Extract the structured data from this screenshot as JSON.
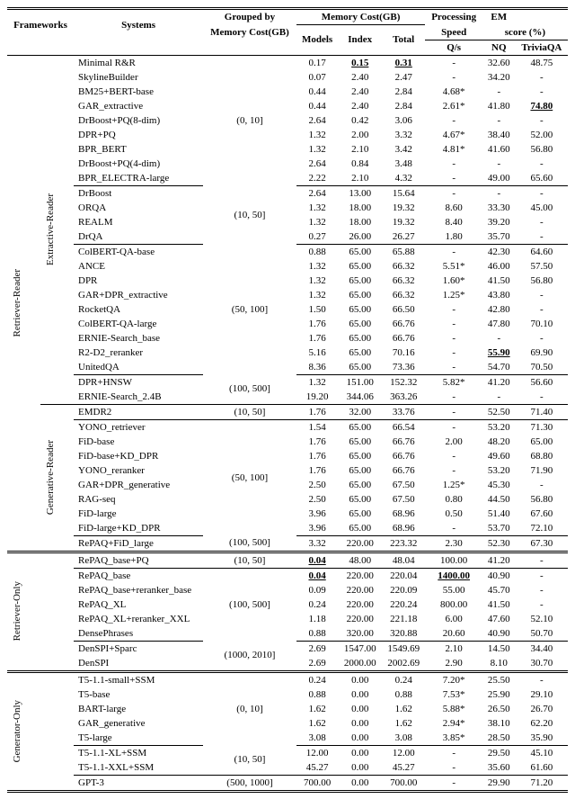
{
  "head": {
    "frameworks": "Frameworks",
    "systems": "Systems",
    "grouped_lbl1": "Grouped by",
    "grouped_lbl2": "Memory Cost(GB)",
    "mem_hdr": "Memory Cost(GB)",
    "mem_models": "Models",
    "mem_index": "Index",
    "mem_total": "Total",
    "speed_hdr1": "Processing",
    "speed_hdr2": "Speed",
    "speed_sub": "Q/s",
    "em_hdr1": "EM",
    "em_hdr2": "score (%)",
    "em_nq": "NQ",
    "em_tq": "TriviaQA"
  },
  "framework_labels": {
    "rr": "Retriever-Reader",
    "ro": "Retriever-Only",
    "go": "Generator-Only",
    "extractive": "Extractive-Reader",
    "generative": "Generative-Reader"
  },
  "groups": {
    "g0_10": "(0, 10]",
    "g10_50": "(10, 50]",
    "g50_100": "(50, 100]",
    "g100_500": "(100, 500]",
    "g500_1000": "(500, 1000]",
    "g1000_2010": "(1000, 2010]"
  },
  "rows": {
    "r1": {
      "sys": "Minimal R&R",
      "m": "0.17",
      "i": "0.15",
      "t": "0.31",
      "q": "-",
      "nq": "32.60",
      "tq": "48.75"
    },
    "r2": {
      "sys": "SkylineBuilder",
      "m": "0.07",
      "i": "2.40",
      "t": "2.47",
      "q": "-",
      "nq": "34.20",
      "tq": "-"
    },
    "r3": {
      "sys": "BM25+BERT-base",
      "m": "0.44",
      "i": "2.40",
      "t": "2.84",
      "q": "4.68*",
      "nq": "-",
      "tq": "-"
    },
    "r4": {
      "sys": "GAR_extractive",
      "m": "0.44",
      "i": "2.40",
      "t": "2.84",
      "q": "2.61*",
      "nq": "41.80",
      "tq": "74.80"
    },
    "r5": {
      "sys": "DrBoost+PQ(8-dim)",
      "m": "2.64",
      "i": "0.42",
      "t": "3.06",
      "q": "-",
      "nq": "-",
      "tq": "-"
    },
    "r6": {
      "sys": "DPR+PQ",
      "m": "1.32",
      "i": "2.00",
      "t": "3.32",
      "q": "4.67*",
      "nq": "38.40",
      "tq": "52.00"
    },
    "r7": {
      "sys": "BPR_BERT",
      "m": "1.32",
      "i": "2.10",
      "t": "3.42",
      "q": "4.81*",
      "nq": "41.60",
      "tq": "56.80"
    },
    "r8": {
      "sys": "DrBoost+PQ(4-dim)",
      "m": "2.64",
      "i": "0.84",
      "t": "3.48",
      "q": "-",
      "nq": "-",
      "tq": "-"
    },
    "r9": {
      "sys": "BPR_ELECTRA-large",
      "m": "2.22",
      "i": "2.10",
      "t": "4.32",
      "q": "-",
      "nq": "49.00",
      "tq": "65.60"
    },
    "r10": {
      "sys": "DrBoost",
      "m": "2.64",
      "i": "13.00",
      "t": "15.64",
      "q": "-",
      "nq": "-",
      "tq": "-"
    },
    "r11": {
      "sys": "ORQA",
      "m": "1.32",
      "i": "18.00",
      "t": "19.32",
      "q": "8.60",
      "nq": "33.30",
      "tq": "45.00"
    },
    "r12": {
      "sys": "REALM",
      "m": "1.32",
      "i": "18.00",
      "t": "19.32",
      "q": "8.40",
      "nq": "39.20",
      "tq": "-"
    },
    "r13": {
      "sys": "DrQA",
      "m": "0.27",
      "i": "26.00",
      "t": "26.27",
      "q": "1.80",
      "nq": "35.70",
      "tq": "-"
    },
    "r14": {
      "sys": "ColBERT-QA-base",
      "m": "0.88",
      "i": "65.00",
      "t": "65.88",
      "q": "-",
      "nq": "42.30",
      "tq": "64.60"
    },
    "r15": {
      "sys": "ANCE",
      "m": "1.32",
      "i": "65.00",
      "t": "66.32",
      "q": "5.51*",
      "nq": "46.00",
      "tq": "57.50"
    },
    "r16": {
      "sys": "DPR",
      "m": "1.32",
      "i": "65.00",
      "t": "66.32",
      "q": "1.60*",
      "nq": "41.50",
      "tq": "56.80"
    },
    "r17": {
      "sys": "GAR+DPR_extractive",
      "m": "1.32",
      "i": "65.00",
      "t": "66.32",
      "q": "1.25*",
      "nq": "43.80",
      "tq": "-"
    },
    "r18": {
      "sys": "RocketQA",
      "m": "1.50",
      "i": "65.00",
      "t": "66.50",
      "q": "-",
      "nq": "42.80",
      "tq": "-"
    },
    "r19": {
      "sys": "ColBERT-QA-large",
      "m": "1.76",
      "i": "65.00",
      "t": "66.76",
      "q": "-",
      "nq": "47.80",
      "tq": "70.10"
    },
    "r20": {
      "sys": "ERNIE-Search_base",
      "m": "1.76",
      "i": "65.00",
      "t": "66.76",
      "q": "-",
      "nq": "-",
      "tq": "-"
    },
    "r21": {
      "sys": "R2-D2_reranker",
      "m": "5.16",
      "i": "65.00",
      "t": "70.16",
      "q": "-",
      "nq": "55.90",
      "tq": "69.90"
    },
    "r22": {
      "sys": "UnitedQA",
      "m": "8.36",
      "i": "65.00",
      "t": "73.36",
      "q": "-",
      "nq": "54.70",
      "tq": "70.50"
    },
    "r23": {
      "sys": "DPR+HNSW",
      "m": "1.32",
      "i": "151.00",
      "t": "152.32",
      "q": "5.82*",
      "nq": "41.20",
      "tq": "56.60"
    },
    "r24": {
      "sys": "ERNIE-Search_2.4B",
      "m": "19.20",
      "i": "344.06",
      "t": "363.26",
      "q": "-",
      "nq": "-",
      "tq": "-"
    },
    "r25": {
      "sys": "EMDR2",
      "m": "1.76",
      "i": "32.00",
      "t": "33.76",
      "q": "-",
      "nq": "52.50",
      "tq": "71.40"
    },
    "r26": {
      "sys": "YONO_retriever",
      "m": "1.54",
      "i": "65.00",
      "t": "66.54",
      "q": "-",
      "nq": "53.20",
      "tq": "71.30"
    },
    "r27": {
      "sys": "FiD-base",
      "m": "1.76",
      "i": "65.00",
      "t": "66.76",
      "q": "2.00",
      "nq": "48.20",
      "tq": "65.00"
    },
    "r28": {
      "sys": "FiD-base+KD_DPR",
      "m": "1.76",
      "i": "65.00",
      "t": "66.76",
      "q": "-",
      "nq": "49.60",
      "tq": "68.80"
    },
    "r29": {
      "sys": "YONO_reranker",
      "m": "1.76",
      "i": "65.00",
      "t": "66.76",
      "q": "-",
      "nq": "53.20",
      "tq": "71.90"
    },
    "r30": {
      "sys": "GAR+DPR_generative",
      "m": "2.50",
      "i": "65.00",
      "t": "67.50",
      "q": "1.25*",
      "nq": "45.30",
      "tq": "-"
    },
    "r31": {
      "sys": "RAG-seq",
      "m": "2.50",
      "i": "65.00",
      "t": "67.50",
      "q": "0.80",
      "nq": "44.50",
      "tq": "56.80"
    },
    "r32": {
      "sys": "FiD-large",
      "m": "3.96",
      "i": "65.00",
      "t": "68.96",
      "q": "0.50",
      "nq": "51.40",
      "tq": "67.60"
    },
    "r33": {
      "sys": "FiD-large+KD_DPR",
      "m": "3.96",
      "i": "65.00",
      "t": "68.96",
      "q": "-",
      "nq": "53.70",
      "tq": "72.10"
    },
    "r34": {
      "sys": "RePAQ+FiD_large",
      "m": "3.32",
      "i": "220.00",
      "t": "223.32",
      "q": "2.30",
      "nq": "52.30",
      "tq": "67.30"
    },
    "r35": {
      "sys": "RePAQ_base+PQ",
      "m": "0.04",
      "i": "48.00",
      "t": "48.04",
      "q": "100.00",
      "nq": "41.20",
      "tq": "-"
    },
    "r36": {
      "sys": "RePAQ_base",
      "m": "0.04",
      "i": "220.00",
      "t": "220.04",
      "q": "1400.00",
      "nq": "40.90",
      "tq": "-"
    },
    "r37": {
      "sys": "RePAQ_base+reranker_base",
      "m": "0.09",
      "i": "220.00",
      "t": "220.09",
      "q": "55.00",
      "nq": "45.70",
      "tq": "-"
    },
    "r38": {
      "sys": "RePAQ_XL",
      "m": "0.24",
      "i": "220.00",
      "t": "220.24",
      "q": "800.00",
      "nq": "41.50",
      "tq": "-"
    },
    "r39": {
      "sys": "RePAQ_XL+reranker_XXL",
      "m": "1.18",
      "i": "220.00",
      "t": "221.18",
      "q": "6.00",
      "nq": "47.60",
      "tq": "52.10"
    },
    "r40": {
      "sys": "DensePhrases",
      "m": "0.88",
      "i": "320.00",
      "t": "320.88",
      "q": "20.60",
      "nq": "40.90",
      "tq": "50.70"
    },
    "r41": {
      "sys": "DenSPI+Sparc",
      "m": "2.69",
      "i": "1547.00",
      "t": "1549.69",
      "q": "2.10",
      "nq": "14.50",
      "tq": "34.40"
    },
    "r42": {
      "sys": "DenSPI",
      "m": "2.69",
      "i": "2000.00",
      "t": "2002.69",
      "q": "2.90",
      "nq": "8.10",
      "tq": "30.70"
    },
    "r43": {
      "sys": "T5-1.1-small+SSM",
      "m": "0.24",
      "i": "0.00",
      "t": "0.24",
      "q": "7.20*",
      "nq": "25.50",
      "tq": "-"
    },
    "r44": {
      "sys": "T5-base",
      "m": "0.88",
      "i": "0.00",
      "t": "0.88",
      "q": "7.53*",
      "nq": "25.90",
      "tq": "29.10"
    },
    "r45": {
      "sys": "BART-large",
      "m": "1.62",
      "i": "0.00",
      "t": "1.62",
      "q": "5.88*",
      "nq": "26.50",
      "tq": "26.70"
    },
    "r46": {
      "sys": "GAR_generative",
      "m": "1.62",
      "i": "0.00",
      "t": "1.62",
      "q": "2.94*",
      "nq": "38.10",
      "tq": "62.20"
    },
    "r47": {
      "sys": "T5-large",
      "m": "3.08",
      "i": "0.00",
      "t": "3.08",
      "q": "3.85*",
      "nq": "28.50",
      "tq": "35.90"
    },
    "r48": {
      "sys": "T5-1.1-XL+SSM",
      "m": "12.00",
      "i": "0.00",
      "t": "12.00",
      "q": "-",
      "nq": "29.50",
      "tq": "45.10"
    },
    "r49": {
      "sys": "T5-1.1-XXL+SSM",
      "m": "45.27",
      "i": "0.00",
      "t": "45.27",
      "q": "-",
      "nq": "35.60",
      "tq": "61.60"
    },
    "r50": {
      "sys": "GPT-3",
      "m": "700.00",
      "i": "0.00",
      "t": "700.00",
      "q": "-",
      "nq": "29.90",
      "tq": "71.20"
    }
  }
}
